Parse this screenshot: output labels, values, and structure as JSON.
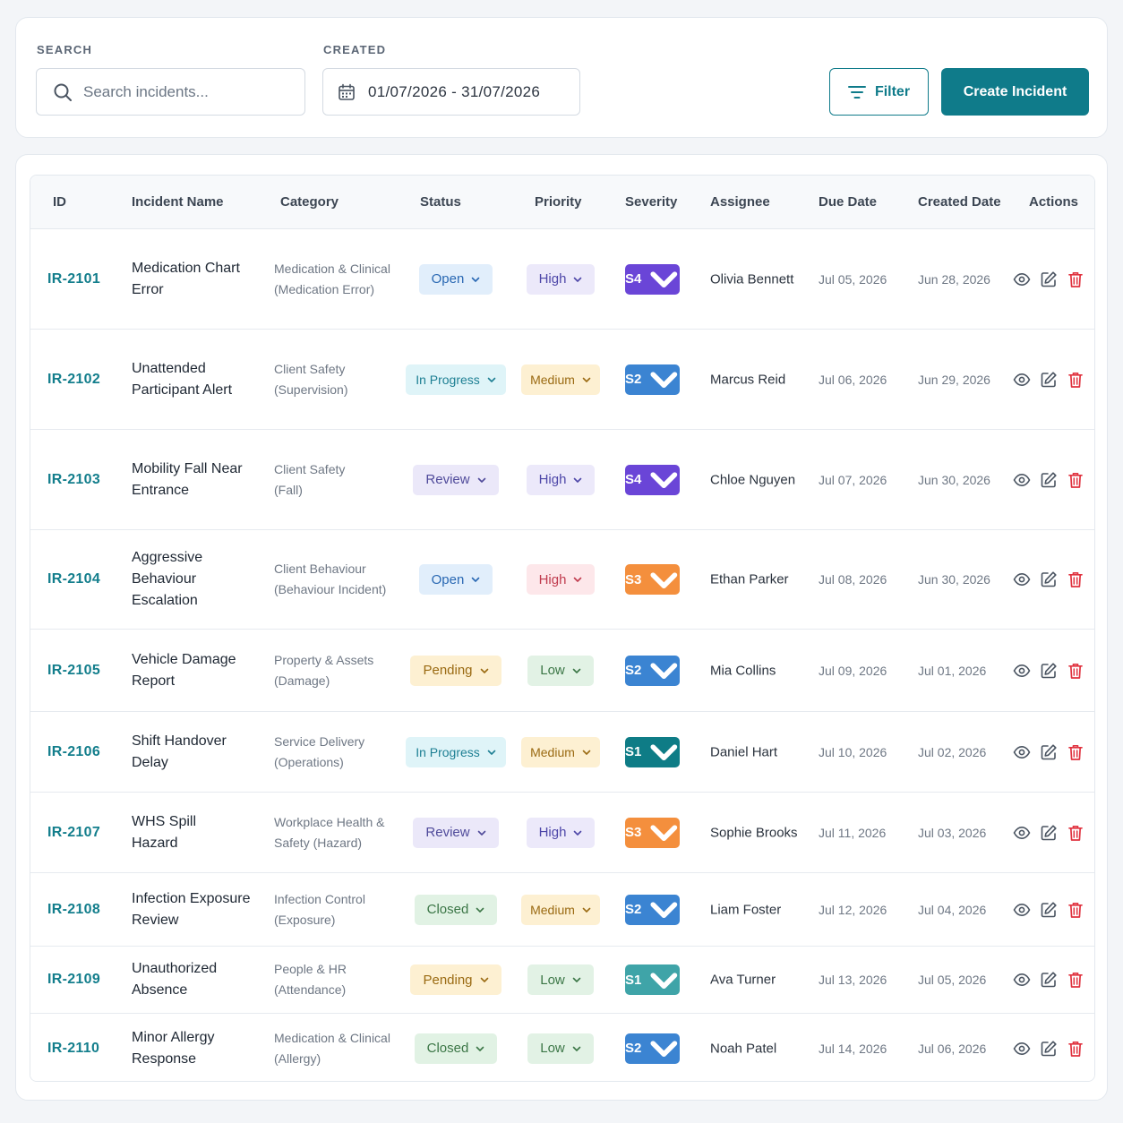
{
  "search": {
    "label": "SEARCH",
    "placeholder": "Search incidents..."
  },
  "created": {
    "label": "CREATED",
    "range": "01/07/2026 - 31/07/2026"
  },
  "toolbar": {
    "filter_label": "Filter",
    "create_label": "Create Incident"
  },
  "columns": [
    "ID",
    "Incident Name",
    "Category",
    "Status",
    "Priority",
    "Severity",
    "Assignee",
    "Due Date",
    "Created Date",
    "Actions"
  ],
  "colors": {
    "accent": "#0f7b8a",
    "delete": "#e0323f"
  },
  "rows": [
    {
      "id": "IR-2101",
      "name": [
        "Medication Chart",
        "Error"
      ],
      "category": [
        "Medication & Clinical",
        "(Medication Error)"
      ],
      "status": "Open",
      "priority": "High",
      "severity": "S4",
      "assignee": "Olivia Bennett",
      "due": "Jul 05, 2026",
      "created": "Jun 28, 2026"
    },
    {
      "id": "IR-2102",
      "name": [
        "Unattended",
        "Participant Alert"
      ],
      "category": [
        "Client Safety",
        "(Supervision)"
      ],
      "status": "In Progress",
      "priority": "Medium",
      "severity": "S2",
      "assignee": "Marcus Reid",
      "due": "Jul 06, 2026",
      "created": "Jun 29, 2026"
    },
    {
      "id": "IR-2103",
      "name": [
        "Mobility Fall Near",
        "Entrance"
      ],
      "category": [
        "Client Safety",
        "(Fall)"
      ],
      "status": "Review",
      "priority": "High",
      "severity": "S4",
      "assignee": "Chloe Nguyen",
      "due": "Jul 07, 2026",
      "created": "Jun 30, 2026"
    },
    {
      "id": "IR-2104",
      "name": [
        "Aggressive Behaviour",
        "Escalation"
      ],
      "category": [
        "Client Behaviour",
        "(Behaviour Incident)"
      ],
      "status": "Open",
      "priority": "High",
      "severity": "S3",
      "assignee": "Ethan Parker",
      "due": "Jul 08, 2026",
      "created": "Jun 30, 2026"
    },
    {
      "id": "IR-2105",
      "name": [
        "Vehicle Damage",
        "Report"
      ],
      "category": [
        "Property & Assets",
        "(Damage)"
      ],
      "status": "Pending",
      "priority": "Low",
      "severity": "S2",
      "assignee": "Mia Collins",
      "due": "Jul 09, 2026",
      "created": "Jul 01, 2026"
    },
    {
      "id": "IR-2106",
      "name": [
        "Shift Handover",
        "Delay"
      ],
      "category": [
        "Service Delivery",
        "(Operations)"
      ],
      "status": "In Progress",
      "priority": "Medium",
      "severity": "S1",
      "assignee": "Daniel Hart",
      "due": "Jul 10, 2026",
      "created": "Jul 02, 2026"
    },
    {
      "id": "IR-2107",
      "name": [
        "WHS Spill",
        "Hazard"
      ],
      "category": [
        "Workplace Health &",
        "Safety (Hazard)"
      ],
      "status": "Review",
      "priority": "High",
      "severity": "S3",
      "assignee": "Sophie Brooks",
      "due": "Jul 11, 2026",
      "created": "Jul 03, 2026"
    },
    {
      "id": "IR-2108",
      "name": [
        "Infection Exposure",
        "Review"
      ],
      "category": [
        "Infection Control",
        "(Exposure)"
      ],
      "status": "Closed",
      "priority": "Medium",
      "severity": "S2",
      "assignee": "Liam Foster",
      "due": "Jul 12, 2026",
      "created": "Jul 04, 2026"
    },
    {
      "id": "IR-2109",
      "name": [
        "Unauthorized",
        "Absence"
      ],
      "category": [
        "People & HR",
        "(Attendance)"
      ],
      "status": "Pending",
      "priority": "Low",
      "severity": "S1",
      "assignee": "Ava Turner",
      "due": "Jul 13, 2026",
      "created": "Jul 05, 2026"
    },
    {
      "id": "IR-2110",
      "name": [
        "Minor Allergy",
        "Response"
      ],
      "category": [
        "Medication & Clinical",
        "(Allergy)"
      ],
      "status": "Closed",
      "priority": "Low",
      "severity": "S2",
      "assignee": "Noah Patel",
      "due": "Jul 14, 2026",
      "created": "Jul 06, 2026"
    }
  ]
}
